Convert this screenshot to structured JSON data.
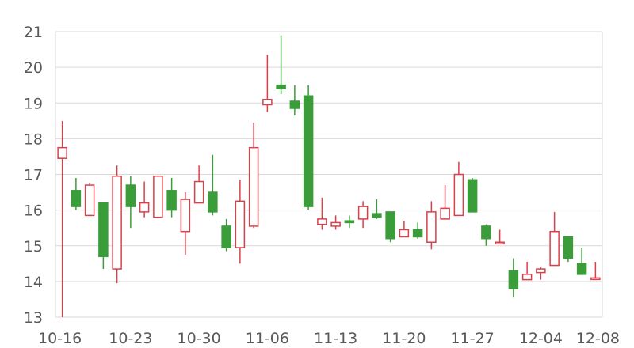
{
  "chart_data": {
    "type": "candlestick",
    "title": "",
    "xlabel": "",
    "ylabel": "",
    "ylim": [
      13,
      21
    ],
    "yticks": [
      13,
      14,
      15,
      16,
      17,
      18,
      19,
      20,
      21
    ],
    "xtick_labels": [
      "10-16",
      "10-23",
      "10-30",
      "11-06",
      "11-13",
      "11-20",
      "11-27",
      "12-04",
      "12-08"
    ],
    "grid": true,
    "legend": "none",
    "colors": {
      "up": "#d9404a",
      "down": "#3a9d3a",
      "grid": "#d9d9d9",
      "text": "#595959"
    },
    "candles": [
      {
        "date": "10-16",
        "open": 17.45,
        "high": 18.5,
        "low": 13.0,
        "close": 17.75
      },
      {
        "date": "10-17",
        "open": 16.55,
        "high": 16.9,
        "low": 16.0,
        "close": 16.1
      },
      {
        "date": "10-18",
        "open": 15.85,
        "high": 16.75,
        "low": 15.85,
        "close": 16.7
      },
      {
        "date": "10-19",
        "open": 16.2,
        "high": 16.2,
        "low": 14.35,
        "close": 14.7
      },
      {
        "date": "10-20",
        "open": 14.35,
        "high": 17.25,
        "low": 13.95,
        "close": 16.95
      },
      {
        "date": "10-23",
        "open": 16.7,
        "high": 16.95,
        "low": 15.5,
        "close": 16.1
      },
      {
        "date": "10-24",
        "open": 15.95,
        "high": 16.8,
        "low": 15.8,
        "close": 16.2
      },
      {
        "date": "10-25",
        "open": 15.8,
        "high": 16.95,
        "low": 15.8,
        "close": 16.95
      },
      {
        "date": "10-26",
        "open": 16.55,
        "high": 16.9,
        "low": 15.8,
        "close": 16.0
      },
      {
        "date": "10-27",
        "open": 15.4,
        "high": 16.5,
        "low": 14.75,
        "close": 16.3
      },
      {
        "date": "10-30",
        "open": 16.2,
        "high": 17.25,
        "low": 16.2,
        "close": 16.8
      },
      {
        "date": "10-31",
        "open": 16.5,
        "high": 17.55,
        "low": 15.85,
        "close": 15.95
      },
      {
        "date": "11-01",
        "open": 15.55,
        "high": 15.75,
        "low": 14.85,
        "close": 14.95
      },
      {
        "date": "11-02",
        "open": 14.95,
        "high": 16.85,
        "low": 14.5,
        "close": 16.25
      },
      {
        "date": "11-03",
        "open": 15.55,
        "high": 18.45,
        "low": 15.5,
        "close": 17.75
      },
      {
        "date": "11-06",
        "open": 18.95,
        "high": 20.35,
        "low": 18.75,
        "close": 19.1
      },
      {
        "date": "11-07",
        "open": 19.5,
        "high": 20.9,
        "low": 19.25,
        "close": 19.4
      },
      {
        "date": "11-08",
        "open": 19.05,
        "high": 19.5,
        "low": 18.65,
        "close": 18.85
      },
      {
        "date": "11-09",
        "open": 19.2,
        "high": 19.5,
        "low": 16.0,
        "close": 16.1
      },
      {
        "date": "11-10",
        "open": 15.6,
        "high": 16.35,
        "low": 15.45,
        "close": 15.75
      },
      {
        "date": "11-13",
        "open": 15.55,
        "high": 15.85,
        "low": 15.45,
        "close": 15.65
      },
      {
        "date": "11-14",
        "open": 15.7,
        "high": 15.85,
        "low": 15.5,
        "close": 15.65
      },
      {
        "date": "11-15",
        "open": 15.75,
        "high": 16.25,
        "low": 15.5,
        "close": 16.1
      },
      {
        "date": "11-16",
        "open": 15.9,
        "high": 16.3,
        "low": 15.75,
        "close": 15.8
      },
      {
        "date": "11-17",
        "open": 15.95,
        "high": 15.95,
        "low": 15.1,
        "close": 15.2
      },
      {
        "date": "11-20",
        "open": 15.25,
        "high": 15.7,
        "low": 15.25,
        "close": 15.45
      },
      {
        "date": "11-21",
        "open": 15.45,
        "high": 15.65,
        "low": 15.2,
        "close": 15.25
      },
      {
        "date": "11-22",
        "open": 15.1,
        "high": 16.25,
        "low": 14.9,
        "close": 15.95
      },
      {
        "date": "11-23",
        "open": 15.75,
        "high": 16.7,
        "low": 15.75,
        "close": 16.05
      },
      {
        "date": "11-24",
        "open": 15.85,
        "high": 17.35,
        "low": 15.85,
        "close": 17.0
      },
      {
        "date": "11-27",
        "open": 16.85,
        "high": 16.9,
        "low": 15.95,
        "close": 15.95
      },
      {
        "date": "11-28",
        "open": 15.55,
        "high": 15.6,
        "low": 15.0,
        "close": 15.2
      },
      {
        "date": "11-29",
        "open": 15.1,
        "high": 15.45,
        "low": 15.05,
        "close": 15.1
      },
      {
        "date": "11-30",
        "open": 14.3,
        "high": 14.65,
        "low": 13.55,
        "close": 13.8
      },
      {
        "date": "12-01",
        "open": 14.05,
        "high": 14.55,
        "low": 14.05,
        "close": 14.2
      },
      {
        "date": "12-04",
        "open": 14.25,
        "high": 14.4,
        "low": 14.05,
        "close": 14.35
      },
      {
        "date": "12-05",
        "open": 14.45,
        "high": 15.95,
        "low": 14.45,
        "close": 15.4
      },
      {
        "date": "12-06",
        "open": 15.25,
        "high": 15.25,
        "low": 14.55,
        "close": 14.65
      },
      {
        "date": "12-07",
        "open": 14.5,
        "high": 14.95,
        "low": 14.2,
        "close": 14.2
      },
      {
        "date": "12-08",
        "open": 14.1,
        "high": 14.55,
        "low": 14.1,
        "close": 14.1
      }
    ]
  }
}
